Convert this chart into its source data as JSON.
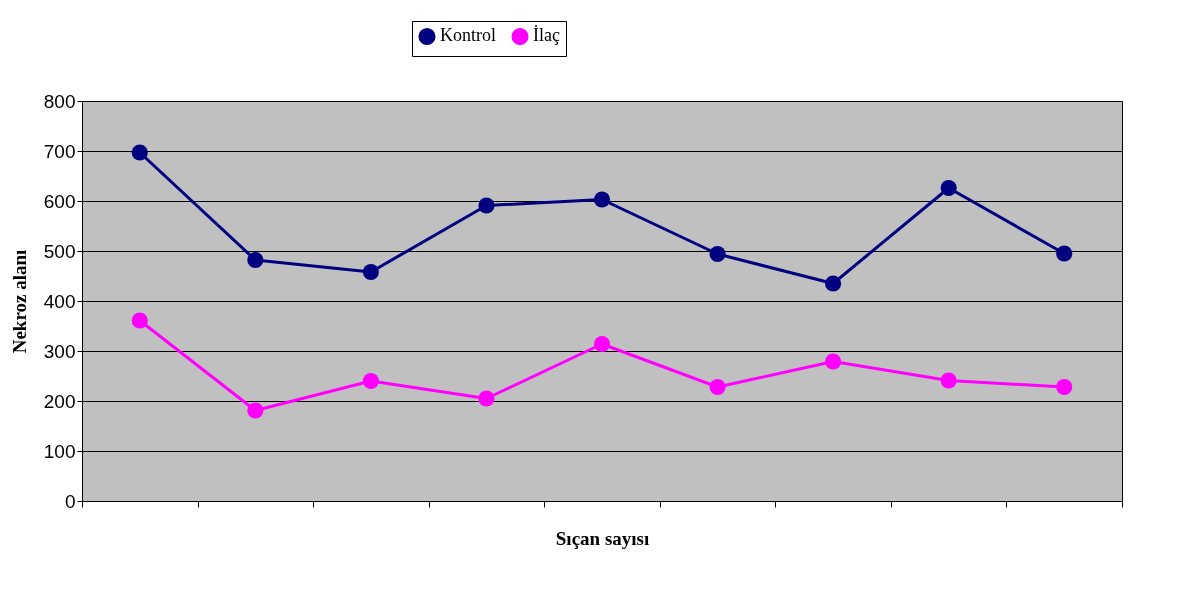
{
  "chart_data": {
    "type": "line",
    "xlabel": "Sıçan sayısı",
    "ylabel": "Nekroz alanı",
    "categories": [
      null,
      null,
      null,
      null,
      null,
      null,
      null,
      null,
      null
    ],
    "series": [
      {
        "name": "Kontrol",
        "color": "#000080",
        "values": [
          697,
          482,
          458,
          591,
          603,
          494,
          435,
          626,
          495
        ]
      },
      {
        "name": "İlaç",
        "color": "#ff00ff",
        "values": [
          361,
          181,
          240,
          205,
          314,
          228,
          279,
          241,
          228
        ]
      }
    ],
    "ylim": [
      0,
      800
    ],
    "yticks": [
      0,
      100,
      200,
      300,
      400,
      500,
      600,
      700,
      800
    ],
    "grid": "y",
    "legend": "top",
    "marker": "circle",
    "line_style": "solid",
    "tick_labels": "y"
  }
}
